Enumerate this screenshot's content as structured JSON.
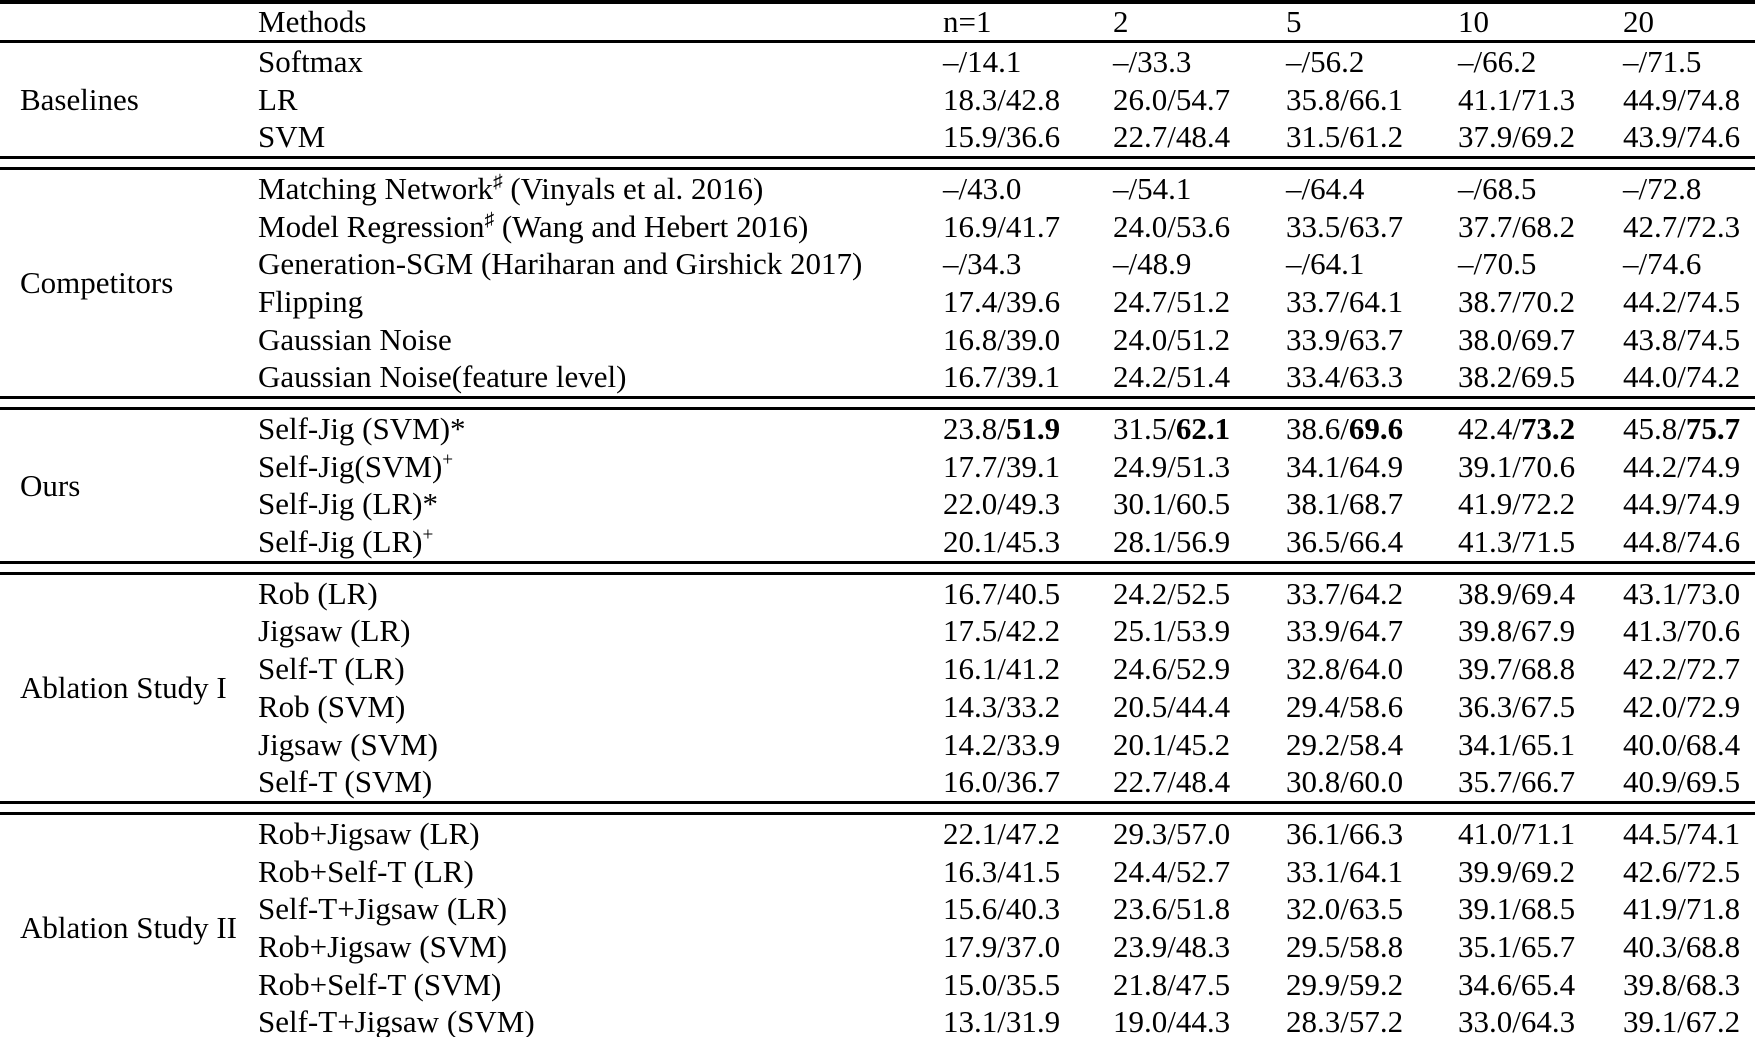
{
  "table": {
    "colors": {
      "text": "#000000",
      "background": "#ffffff",
      "rule": "#000000"
    },
    "header": {
      "methods": "Methods",
      "cols": [
        "n=1",
        "2",
        "5",
        "10",
        "20"
      ]
    },
    "groups": [
      {
        "label": "Baselines",
        "rows": [
          {
            "method": "Softmax",
            "values": [
              "–/14.1",
              "–/33.3",
              "–/56.2",
              "–/66.2",
              "–/71.5"
            ]
          },
          {
            "method": "LR",
            "values": [
              "18.3/42.8",
              "26.0/54.7",
              "35.8/66.1",
              "41.1/71.3",
              "44.9/74.8"
            ]
          },
          {
            "method": "SVM",
            "values": [
              "15.9/36.6",
              "22.7/48.4",
              "31.5/61.2",
              "37.9/69.2",
              "43.9/74.6"
            ]
          }
        ]
      },
      {
        "label": "Competitors",
        "rows": [
          {
            "method": "Matching Network",
            "sup": "♯",
            "after": " (Vinyals et al. 2016)",
            "values": [
              "–/43.0",
              "–/54.1",
              "–/64.4",
              "–/68.5",
              "–/72.8"
            ]
          },
          {
            "method": "Model Regression",
            "sup": "♯",
            "after": " (Wang and Hebert 2016)",
            "values": [
              "16.9/41.7",
              "24.0/53.6",
              "33.5/63.7",
              "37.7/68.2",
              "42.7/72.3"
            ]
          },
          {
            "method": "Generation-SGM (Hariharan and Girshick 2017)",
            "values": [
              "–/34.3",
              "–/48.9",
              "–/64.1",
              "–/70.5",
              "–/74.6"
            ]
          },
          {
            "method": "Flipping",
            "values": [
              "17.4/39.6",
              "24.7/51.2",
              "33.7/64.1",
              "38.7/70.2",
              "44.2/74.5"
            ]
          },
          {
            "method": "Gaussian Noise",
            "values": [
              "16.8/39.0",
              "24.0/51.2",
              "33.9/63.7",
              "38.0/69.7",
              "43.8/74.5"
            ]
          },
          {
            "method": "Gaussian Noise(feature level)",
            "values": [
              "16.7/39.1",
              "24.2/51.4",
              "33.4/63.3",
              "38.2/69.5",
              "44.0/74.2"
            ]
          }
        ]
      },
      {
        "label": "Ours",
        "rows": [
          {
            "method": "Self-Jig (SVM)*",
            "bold_second": true,
            "values": [
              "23.8/51.9",
              "31.5/62.1",
              "38.6/69.6",
              "42.4/73.2",
              "45.8/75.7"
            ]
          },
          {
            "method": "Self-Jig(SVM)",
            "sup": "+",
            "values": [
              "17.7/39.1",
              "24.9/51.3",
              "34.1/64.9",
              "39.1/70.6",
              "44.2/74.9"
            ]
          },
          {
            "method": "Self-Jig (LR)*",
            "values": [
              "22.0/49.3",
              "30.1/60.5",
              "38.1/68.7",
              "41.9/72.2",
              "44.9/74.9"
            ]
          },
          {
            "method": "Self-Jig (LR)",
            "sup": "+",
            "values": [
              "20.1/45.3",
              "28.1/56.9",
              "36.5/66.4",
              "41.3/71.5",
              "44.8/74.6"
            ]
          }
        ]
      },
      {
        "label": "Ablation Study I",
        "rows": [
          {
            "method": "Rob (LR)",
            "values": [
              "16.7/40.5",
              "24.2/52.5",
              "33.7/64.2",
              "38.9/69.4",
              "43.1/73.0"
            ]
          },
          {
            "method": "Jigsaw (LR)",
            "values": [
              "17.5/42.2",
              "25.1/53.9",
              "33.9/64.7",
              "39.8/67.9",
              "41.3/70.6"
            ]
          },
          {
            "method": "Self-T (LR)",
            "values": [
              "16.1/41.2",
              "24.6/52.9",
              "32.8/64.0",
              "39.7/68.8",
              "42.2/72.7"
            ]
          },
          {
            "method": "Rob (SVM)",
            "values": [
              "14.3/33.2",
              "20.5/44.4",
              "29.4/58.6",
              "36.3/67.5",
              "42.0/72.9"
            ]
          },
          {
            "method": "Jigsaw (SVM)",
            "values": [
              "14.2/33.9",
              "20.1/45.2",
              "29.2/58.4",
              "34.1/65.1",
              "40.0/68.4"
            ]
          },
          {
            "method": "Self-T (SVM)",
            "values": [
              "16.0/36.7",
              "22.7/48.4",
              "30.8/60.0",
              "35.7/66.7",
              "40.9/69.5"
            ]
          }
        ]
      },
      {
        "label": "Ablation Study II",
        "rows": [
          {
            "method": "Rob+Jigsaw (LR)",
            "values": [
              "22.1/47.2",
              "29.3/57.0",
              "36.1/66.3",
              "41.0/71.1",
              "44.5/74.1"
            ]
          },
          {
            "method": "Rob+Self-T (LR)",
            "values": [
              "16.3/41.5",
              "24.4/52.7",
              "33.1/64.1",
              "39.9/69.2",
              "42.6/72.5"
            ]
          },
          {
            "method": "Self-T+Jigsaw (LR)",
            "values": [
              "15.6/40.3",
              "23.6/51.8",
              "32.0/63.5",
              "39.1/68.5",
              "41.9/71.8"
            ]
          },
          {
            "method": "Rob+Jigsaw (SVM)",
            "values": [
              "17.9/37.0",
              "23.9/48.3",
              "29.5/58.8",
              "35.1/65.7",
              "40.3/68.8"
            ]
          },
          {
            "method": "Rob+Self-T (SVM)",
            "values": [
              "15.0/35.5",
              "21.8/47.5",
              "29.9/59.2",
              "34.6/65.4",
              "39.8/68.3"
            ]
          },
          {
            "method": "Self-T+Jigsaw (SVM)",
            "values": [
              "13.1/31.9",
              "19.0/44.3",
              "28.3/57.2",
              "33.0/64.3",
              "39.1/67.2"
            ]
          }
        ]
      }
    ]
  }
}
